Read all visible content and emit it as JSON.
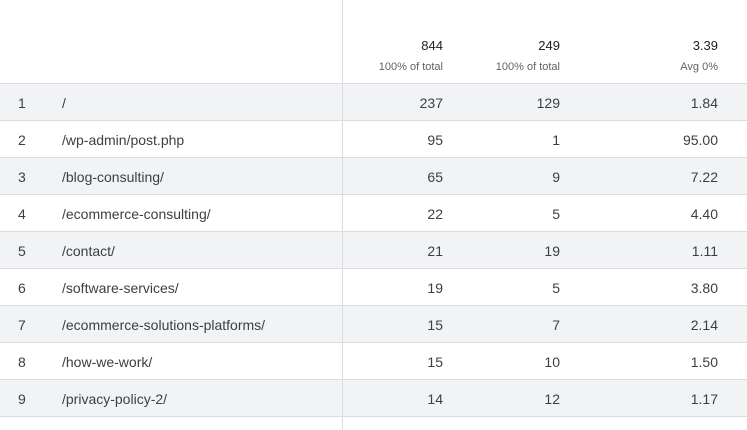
{
  "totals": {
    "users": {
      "value": "844",
      "sub": "100% of total"
    },
    "views": {
      "value": "249",
      "sub": "100% of total"
    },
    "ratio": {
      "value": "3.39",
      "sub": "Avg 0%"
    }
  },
  "rows": [
    {
      "index": "1",
      "page": "/",
      "users": "237",
      "views": "129",
      "ratio": "1.84"
    },
    {
      "index": "2",
      "page": "/wp-admin/post.php",
      "users": "95",
      "views": "1",
      "ratio": "95.00"
    },
    {
      "index": "3",
      "page": "/blog-consulting/",
      "users": "65",
      "views": "9",
      "ratio": "7.22"
    },
    {
      "index": "4",
      "page": "/ecommerce-consulting/",
      "users": "22",
      "views": "5",
      "ratio": "4.40"
    },
    {
      "index": "5",
      "page": "/contact/",
      "users": "21",
      "views": "19",
      "ratio": "1.11"
    },
    {
      "index": "6",
      "page": "/software-services/",
      "users": "19",
      "views": "5",
      "ratio": "3.80"
    },
    {
      "index": "7",
      "page": "/ecommerce-solutions-platforms/",
      "users": "15",
      "views": "7",
      "ratio": "2.14"
    },
    {
      "index": "8",
      "page": "/how-we-work/",
      "users": "15",
      "views": "10",
      "ratio": "1.50"
    },
    {
      "index": "9",
      "page": "/privacy-policy-2/",
      "users": "14",
      "views": "12",
      "ratio": "1.17"
    }
  ]
}
